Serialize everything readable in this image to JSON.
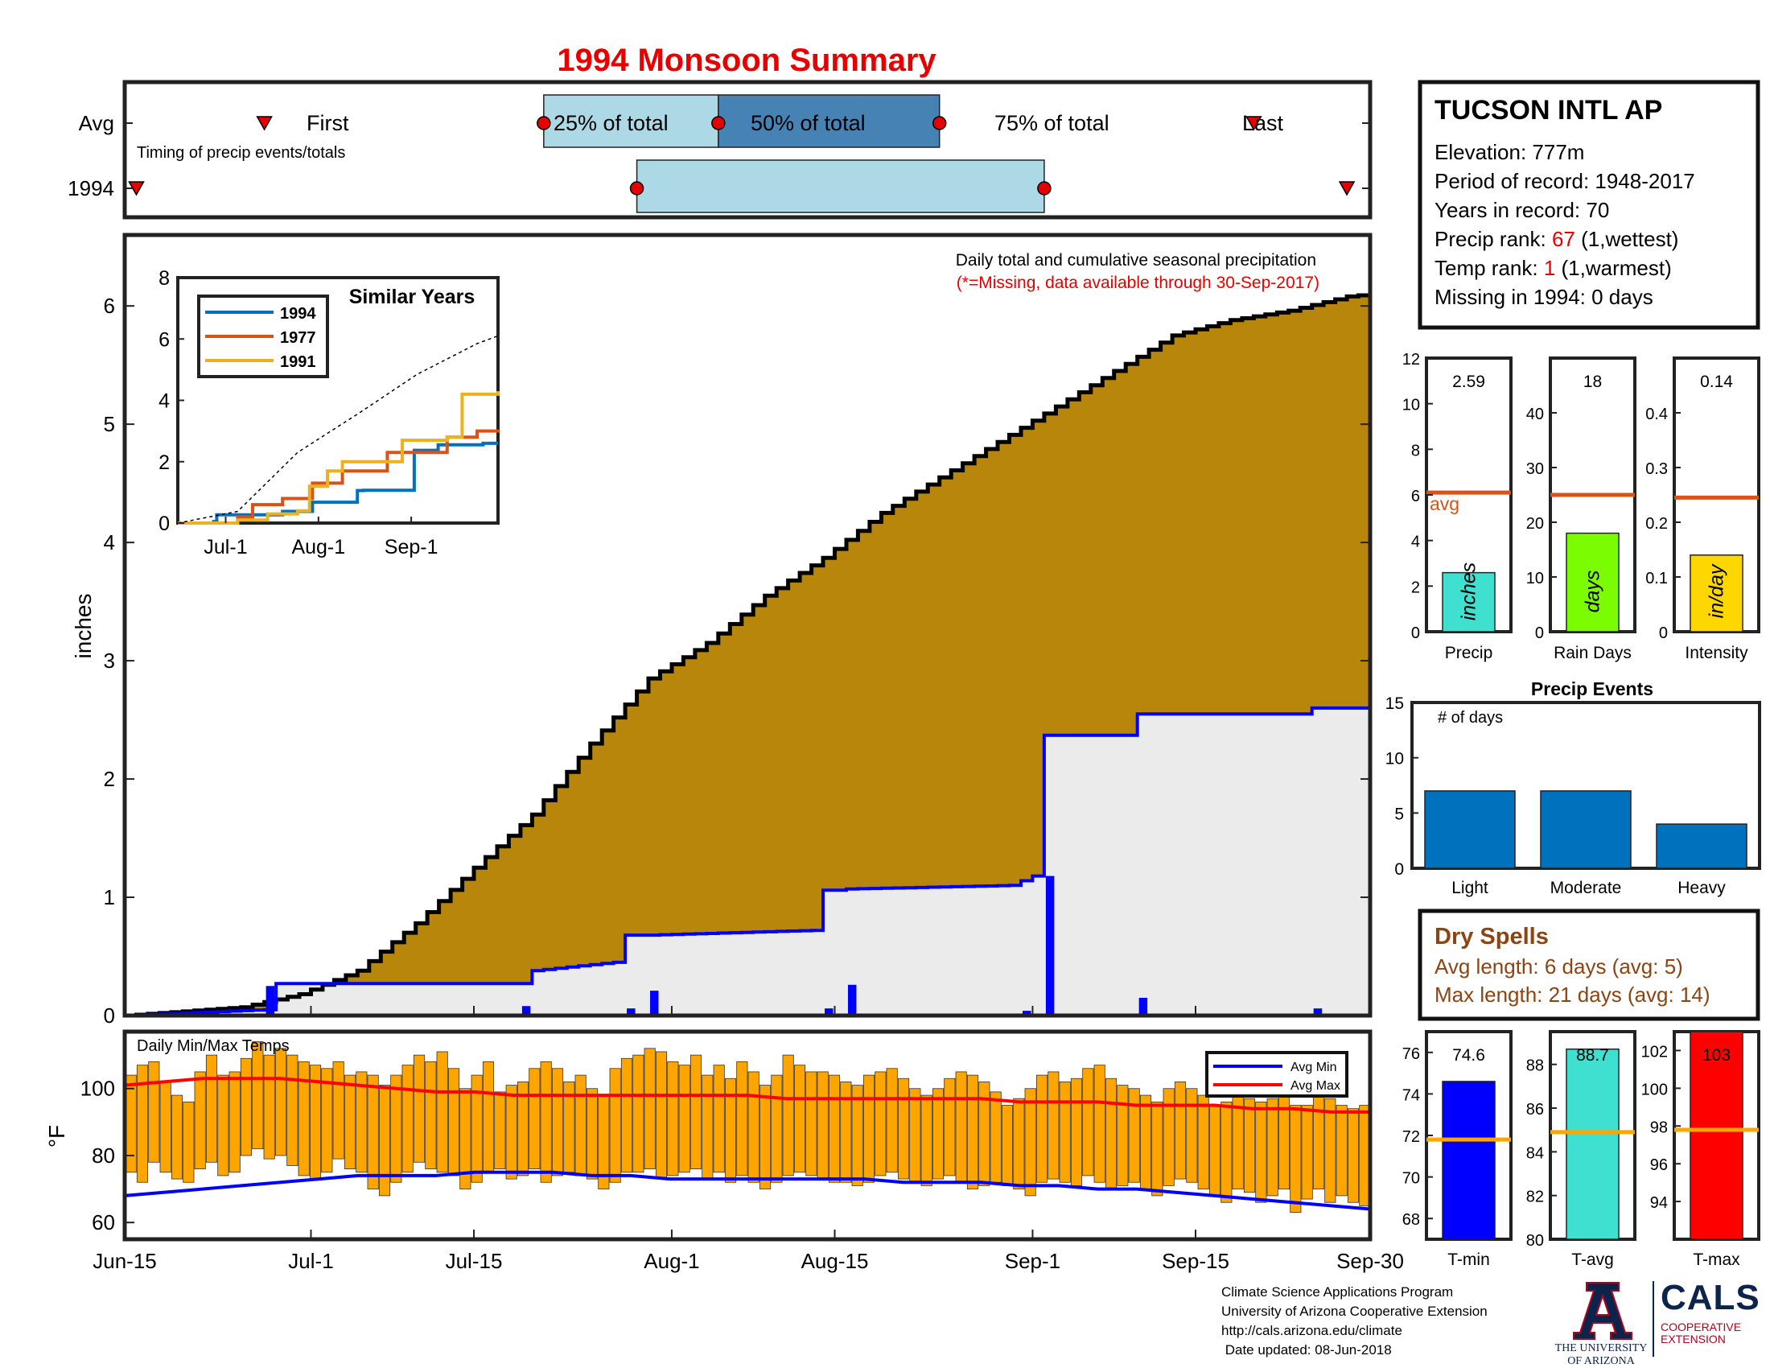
{
  "title": "1994 Monsoon Summary",
  "timing_panel": {
    "row_labels": [
      "Avg",
      "1994"
    ],
    "subtitle": "Timing of precip events/totals",
    "avg_first_label": "First",
    "avg_last_label": "Last",
    "pct_labels": [
      "25% of total",
      "50% of total",
      "75% of total"
    ],
    "avg_marks": {
      "first": "Jun-27",
      "p25": "Jul-21",
      "p50": "Aug-5",
      "p75": "Aug-24",
      "last": "Sep-20"
    },
    "year_marks": {
      "first": "Jun-16",
      "p25": "Jul-29",
      "p75": "Sep-2",
      "last": "Sep-28"
    }
  },
  "station": {
    "name": "TUCSON INTL AP",
    "elevation": "Elevation: 777m",
    "period": "Period of record: 1948-2017",
    "years": "Years in record: 70",
    "precip_rank_label": "Precip rank: ",
    "precip_rank_value": "67",
    "precip_rank_suffix": " (1,wettest)",
    "temp_rank_label": "Temp rank: ",
    "temp_rank_value": "1",
    "temp_rank_suffix": " (1,warmest)",
    "missing": "Missing in 1994: 0 days"
  },
  "main_chart": {
    "annotation": "Daily total and cumulative seasonal precipitation",
    "missing_note": "(*=Missing, data available through 30-Sep-2017)",
    "ylabel": "inches",
    "y_ticks": [
      "0",
      "1",
      "2",
      "3",
      "4",
      "5",
      "6"
    ],
    "x_ticks": [
      "Jun-15",
      "Jul-1",
      "Jul-15",
      "Aug-1",
      "Aug-15",
      "Sep-1",
      "Sep-15",
      "Sep-30"
    ]
  },
  "chart_data": [
    {
      "type": "area",
      "name": "cumulative-precipitation",
      "x_unit": "day of season (Jun-15 = 0, Sep-30 = 107)",
      "ylim": [
        0,
        6.6
      ],
      "series": [
        {
          "name": "Avg cumulative",
          "x": [
            0,
            10,
            15,
            20,
            25,
            30,
            35,
            40,
            45,
            50,
            55,
            60,
            65,
            70,
            75,
            80,
            85,
            90,
            95,
            100,
            105,
            107
          ],
          "values": [
            0,
            0.07,
            0.18,
            0.38,
            0.78,
            1.25,
            1.7,
            2.3,
            2.85,
            3.15,
            3.55,
            3.87,
            4.25,
            4.55,
            4.85,
            5.15,
            5.45,
            5.75,
            5.88,
            5.96,
            6.08,
            6.1
          ]
        },
        {
          "name": "1994 cumulative",
          "x": [
            0,
            12,
            13,
            34,
            35,
            42,
            43,
            44,
            45,
            59,
            60,
            61,
            62,
            76,
            78,
            79,
            80,
            86,
            87,
            101,
            102,
            107
          ],
          "values": [
            0,
            0.05,
            0.27,
            0.27,
            0.38,
            0.45,
            0.68,
            0.68,
            0.68,
            0.72,
            1.06,
            1.06,
            1.07,
            1.1,
            1.18,
            2.37,
            2.37,
            2.37,
            2.55,
            2.55,
            2.6,
            2.6
          ]
        }
      ]
    },
    {
      "type": "bar",
      "name": "daily-precipitation-1994",
      "x": [
        12,
        34,
        43,
        45,
        60,
        62,
        77,
        79,
        87,
        102
      ],
      "values": [
        0.25,
        0.08,
        0.06,
        0.21,
        0.06,
        0.26,
        0.04,
        1.18,
        0.15,
        0.06
      ]
    },
    {
      "type": "line",
      "name": "similar-years",
      "title": "Similar Years",
      "x_ticks": [
        "Jul-1",
        "Aug-1",
        "Sep-1"
      ],
      "ylim": [
        0,
        8
      ],
      "y_ticks": [
        "0",
        "2",
        "4",
        "6",
        "8"
      ],
      "series": [
        {
          "name": "1994",
          "color": "#0072bd",
          "x": [
            0,
            12,
            13,
            34,
            35,
            45,
            60,
            62,
            79,
            87,
            102,
            107
          ],
          "values": [
            0,
            0.05,
            0.27,
            0.27,
            0.38,
            0.68,
            1.06,
            1.07,
            2.37,
            2.55,
            2.6,
            2.6
          ]
        },
        {
          "name": "1977",
          "color": "#d95319",
          "x": [
            0,
            20,
            25,
            35,
            45,
            55,
            65,
            70,
            80,
            90,
            100,
            107
          ],
          "values": [
            0,
            0.2,
            0.6,
            0.8,
            1.3,
            1.7,
            1.7,
            2.3,
            2.3,
            2.8,
            3.0,
            3.05
          ]
        },
        {
          "name": "1991",
          "color": "#edb120",
          "x": [
            0,
            20,
            30,
            40,
            44,
            50,
            55,
            65,
            75,
            80,
            85,
            90,
            95,
            100,
            107
          ],
          "values": [
            0,
            0.1,
            0.3,
            0.4,
            1.2,
            1.7,
            2.0,
            2.0,
            2.7,
            2.7,
            2.7,
            2.8,
            4.2,
            4.2,
            4.3
          ]
        },
        {
          "name": "Average",
          "color": "#000000",
          "x": [
            0,
            20,
            40,
            60,
            80,
            100,
            107
          ],
          "values": [
            0,
            0.38,
            2.3,
            3.55,
            4.85,
            5.85,
            6.1
          ]
        }
      ]
    },
    {
      "type": "bar",
      "name": "daily-min-max-temps",
      "title": "Daily Min/Max Temps",
      "ylabel": "°F",
      "y_ticks": [
        "60",
        "80",
        "100"
      ],
      "ylim": [
        55,
        117
      ],
      "legend": [
        "Avg Min",
        "Avg Max"
      ],
      "max": [
        104,
        107,
        108,
        102,
        98,
        96,
        105,
        110,
        104,
        105,
        109,
        114,
        110,
        112,
        110,
        108,
        107,
        106,
        108,
        104,
        105,
        104,
        101,
        104,
        107,
        110,
        108,
        111,
        106,
        100,
        104,
        108,
        99,
        101,
        102,
        106,
        108,
        106,
        102,
        104,
        100,
        98,
        106,
        109,
        110,
        112,
        111,
        108,
        107,
        110,
        104,
        107,
        103,
        108,
        105,
        101,
        104,
        110,
        107,
        105,
        105,
        104,
        102,
        101,
        104,
        105,
        106,
        103,
        100,
        98,
        100,
        103,
        105,
        104,
        102,
        99,
        95,
        97,
        100,
        104,
        105,
        102,
        103,
        106,
        107,
        103,
        101,
        100,
        98,
        96,
        100,
        102,
        100,
        98,
        95,
        96,
        100,
        97,
        96,
        97,
        98,
        95,
        95,
        98,
        97,
        95,
        94,
        95
      ],
      "min": [
        75,
        72,
        78,
        75,
        73,
        72,
        76,
        78,
        74,
        75,
        80,
        82,
        79,
        80,
        77,
        74,
        73,
        75,
        79,
        76,
        75,
        70,
        68,
        72,
        75,
        78,
        76,
        75,
        74,
        70,
        72,
        75,
        76,
        73,
        74,
        76,
        72,
        74,
        75,
        74,
        73,
        70,
        72,
        75,
        75,
        76,
        73,
        74,
        75,
        76,
        73,
        75,
        72,
        74,
        72,
        70,
        72,
        74,
        75,
        74,
        73,
        72,
        72,
        71,
        72,
        74,
        75,
        73,
        72,
        71,
        73,
        74,
        72,
        70,
        71,
        72,
        71,
        70,
        68,
        72,
        73,
        72,
        71,
        74,
        72,
        70,
        71,
        72,
        70,
        68,
        71,
        73,
        72,
        70,
        68,
        66,
        70,
        69,
        66,
        68,
        70,
        63,
        67,
        70,
        66,
        68,
        66,
        65
      ],
      "avg_min": [
        68,
        69,
        70,
        71,
        72,
        73,
        74,
        74,
        74,
        75,
        75,
        75,
        74,
        74,
        73,
        73,
        73,
        73,
        73,
        73,
        72,
        72,
        72,
        71,
        71,
        70,
        70,
        69,
        68,
        67,
        66,
        65,
        64
      ],
      "avg_max": [
        101,
        102,
        103,
        103,
        103,
        102,
        101,
        100,
        99,
        99,
        98,
        98,
        98,
        98,
        98,
        98,
        98,
        97,
        97,
        97,
        97,
        97,
        97,
        96,
        96,
        96,
        95,
        95,
        95,
        94,
        94,
        93,
        93
      ],
      "x_ticks": [
        "Jun-15",
        "Jul-1",
        "Jul-15",
        "Aug-1",
        "Aug-15",
        "Sep-1",
        "Sep-15",
        "Sep-30"
      ]
    },
    {
      "type": "bar",
      "name": "season-precip",
      "label": "Precip",
      "bar_text": "inches",
      "value": 2.59,
      "value_label": "2.59",
      "avg": 6.1,
      "avg_label": "avg",
      "ylim": [
        0,
        12
      ],
      "y_ticks": [
        "0",
        "2",
        "4",
        "6",
        "8",
        "10",
        "12"
      ],
      "color": "#40e0d0"
    },
    {
      "type": "bar",
      "name": "season-rain-days",
      "label": "Rain Days",
      "bar_text": "days",
      "value": 18,
      "value_label": "18",
      "avg": 25,
      "ylim": [
        0,
        50
      ],
      "y_ticks": [
        "0",
        "10",
        "20",
        "30",
        "40"
      ],
      "color": "#7cfc00"
    },
    {
      "type": "bar",
      "name": "season-intensity",
      "label": "Intensity",
      "bar_text": "in/day",
      "value": 0.14,
      "value_label": "0.14",
      "avg": 0.245,
      "ylim": [
        0,
        0.5
      ],
      "y_ticks": [
        "0",
        "0.1",
        "0.2",
        "0.3",
        "0.4"
      ],
      "color": "#ffd700"
    },
    {
      "type": "bar",
      "name": "precip-events",
      "title": "Precip Events",
      "ylabel": "# of days",
      "categories": [
        "Light",
        "Moderate",
        "Heavy"
      ],
      "values": [
        7,
        7,
        4
      ],
      "ylim": [
        0,
        15
      ],
      "y_ticks": [
        "0",
        "5",
        "10",
        "15"
      ]
    },
    {
      "type": "bar",
      "name": "season-temps",
      "panels": [
        {
          "label": "T-min",
          "value": 74.6,
          "value_label": "74.6",
          "avg": 71.8,
          "ylim": [
            67,
            77
          ],
          "y_ticks": [
            "68",
            "70",
            "72",
            "74",
            "76"
          ],
          "color": "#0000ff"
        },
        {
          "label": "T-avg",
          "value": 88.7,
          "value_label": "88.7",
          "avg": 84.9,
          "ylim": [
            80,
            89.5
          ],
          "y_ticks": [
            "80",
            "82",
            "84",
            "86",
            "88"
          ],
          "color": "#40e0d0"
        },
        {
          "label": "T-max",
          "value": 103,
          "value_label": "103",
          "avg": 97.8,
          "ylim": [
            92,
            103
          ],
          "y_ticks": [
            "94",
            "96",
            "98",
            "100",
            "102"
          ],
          "color": "#ff0000"
        }
      ]
    }
  ],
  "dry_spells": {
    "title": "Dry Spells",
    "avg_length": "Avg length: 6 days (avg: 5)",
    "max_length": "Max length: 21 days (avg: 14)"
  },
  "footer": {
    "lines": [
      "Climate Science Applications Program",
      "University of Arizona Cooperative Extension",
      "http://cals.arizona.edu/climate",
      " Date updated: 08-Jun-2018"
    ],
    "ua_logo_text": [
      "THE UNIVERSITY",
      "OF ARIZONA"
    ],
    "cals_title": "CALS",
    "cals_sub": [
      "COOPERATIVE",
      "EXTENSION"
    ]
  },
  "colors": {
    "title": "#e60000",
    "avg_fill": "#b8860b",
    "year_fill": "#ebebeb",
    "year_line": "#0000ff",
    "temp_bar": "#ffa500",
    "avg_line_orange": "#d95319",
    "dry_spells": "#8b4513",
    "rank_red": "#e60000",
    "box_light": "#add8e6",
    "box_dark": "#4682b4",
    "event_bar": "#0072bd"
  }
}
